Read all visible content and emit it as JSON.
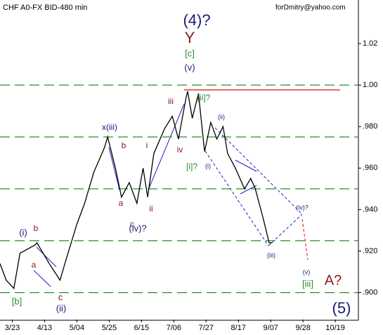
{
  "chart_data": {
    "type": "line",
    "title": "CHF A0-FX BID-480 min",
    "subtitle": "forDmitry@yahoo.com",
    "x": [
      -8,
      -4,
      1,
      5,
      15,
      16,
      24,
      31,
      35,
      42,
      47,
      53,
      60,
      62,
      67,
      71,
      76,
      81,
      85,
      88,
      92,
      99,
      104,
      108,
      113,
      114,
      117,
      121,
      125,
      129,
      133,
      137,
      140,
      145,
      151,
      155,
      158,
      163,
      167,
      169
    ],
    "series": [
      {
        "name": "CHF",
        "color": "#000000",
        "values": [
          0.914,
          0.906,
          0.902,
          0.919,
          0.923,
          0.924,
          0.914,
          0.906,
          0.916,
          0.933,
          0.943,
          0.958,
          0.97,
          0.975,
          0.96,
          0.946,
          0.953,
          0.943,
          0.96,
          0.946,
          0.967,
          0.979,
          0.985,
          0.974,
          0.994,
          0.997,
          0.984,
          0.996,
          0.968,
          0.982,
          0.974,
          0.98,
          0.967,
          0.96,
          0.95,
          0.955,
          0.95,
          0.936,
          0.924,
          0.924
        ]
      }
    ],
    "xlim": [
      -8,
      225
    ],
    "xticks": [
      {
        "value": 0,
        "label": "3/23"
      },
      {
        "value": 21,
        "label": "4/13"
      },
      {
        "value": 42,
        "label": "5/04"
      },
      {
        "value": 63,
        "label": "5/25"
      },
      {
        "value": 84,
        "label": "6/15"
      },
      {
        "value": 105,
        "label": "7/06"
      },
      {
        "value": 126,
        "label": "7/27"
      },
      {
        "value": 147,
        "label": "8/17"
      },
      {
        "value": 168,
        "label": "9/07"
      },
      {
        "value": 189,
        "label": "9/28"
      },
      {
        "value": 210,
        "label": "10/19"
      }
    ],
    "ylim": [
      0.887,
      1.041
    ],
    "yticks": [
      {
        "value": 0.9,
        "label": ".900"
      },
      {
        "value": 0.92,
        "label": ".920"
      },
      {
        "value": 0.94,
        "label": ".940"
      },
      {
        "value": 0.96,
        "label": ".960"
      },
      {
        "value": 0.98,
        "label": ".980"
      },
      {
        "value": 1.0,
        "label": "1.00"
      },
      1.02
    ],
    "levels": [
      1.0,
      0.975,
      0.95,
      0.925,
      0.9
    ],
    "level_color": "#2e8b2e",
    "annotations": [
      {
        "text": "(4)?",
        "color": "#1a1a7a"
      },
      {
        "text": "Y",
        "color": "#8b1a1a"
      },
      {
        "text": "[c]",
        "color": "#2e8b2e"
      },
      {
        "text": "(v)",
        "color": "#1a1a7a"
      },
      {
        "text": "iii",
        "color": "#8b1a1a"
      },
      {
        "text": "[ii]?",
        "color": "#2e8b2e"
      },
      {
        "text": "x(iii)",
        "color": "#1a1a7a"
      },
      {
        "text": "b",
        "color": "#8b1a1a"
      },
      {
        "text": "i",
        "color": "#8b1a1a"
      },
      {
        "text": "iv",
        "color": "#8b1a1a"
      },
      {
        "text": "[i]?",
        "color": "#2e8b2e"
      },
      {
        "text": "(i)",
        "color": "#1a1a7a"
      },
      {
        "text": "(ii)",
        "color": "#1a1a7a"
      },
      {
        "text": "a",
        "color": "#8b1a1a"
      },
      {
        "text": "c",
        "color": "#8b1a1a"
      },
      {
        "text": "ii",
        "color": "#8b1a1a"
      },
      {
        "text": "(iv)?",
        "color": "#1a1a7a"
      },
      {
        "text": "(i)",
        "color": "#1a1a7a"
      },
      {
        "text": "b",
        "color": "#8b1a1a"
      },
      {
        "text": "a",
        "color": "#8b1a1a"
      },
      {
        "text": "c",
        "color": "#8b1a1a"
      },
      {
        "text": "(ii)",
        "color": "#1a1a7a"
      },
      {
        "text": "[b]",
        "color": "#2e8b2e"
      },
      {
        "text": "(iii)",
        "color": "#1a1a7a"
      },
      {
        "text": "(iv)?",
        "color": "#1a1a7a"
      },
      {
        "text": "(v)",
        "color": "#1a1a7a"
      },
      {
        "text": "[iii]",
        "color": "#2e8b2e"
      },
      {
        "text": "A?",
        "color": "#8b1a1a"
      },
      {
        "text": "(5)",
        "color": "#1a1a7a"
      }
    ]
  }
}
